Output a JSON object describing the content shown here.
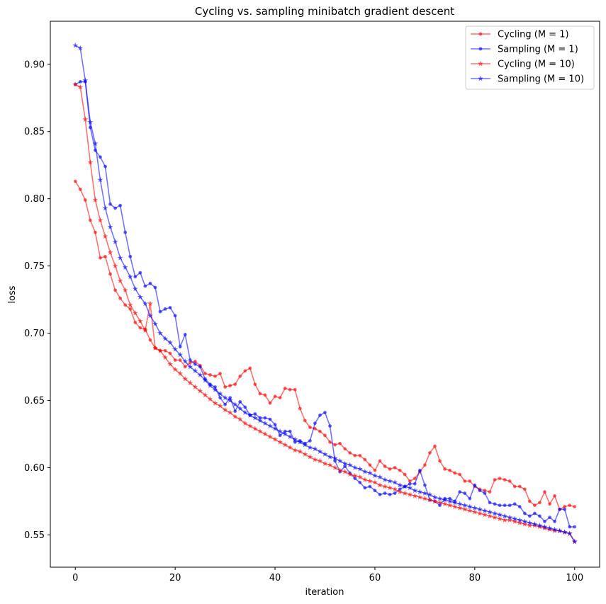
{
  "chart_data": {
    "type": "line",
    "title": "Cycling vs. sampling minibatch gradient descent",
    "xlabel": "iteration",
    "ylabel": "loss",
    "xlim": [
      -5,
      105
    ],
    "ylim": [
      0.526,
      0.932
    ],
    "xticks": [
      0,
      20,
      40,
      60,
      80,
      100
    ],
    "yticks": [
      0.55,
      0.6,
      0.65,
      0.7,
      0.75,
      0.8,
      0.85,
      0.9
    ],
    "ytick_labels": [
      "0.55",
      "0.60",
      "0.65",
      "0.70",
      "0.75",
      "0.80",
      "0.85",
      "0.90"
    ],
    "grid": false,
    "legend_position": "top-right",
    "x": [
      0,
      1,
      2,
      3,
      4,
      5,
      6,
      7,
      8,
      9,
      10,
      11,
      12,
      13,
      14,
      15,
      16,
      17,
      18,
      19,
      20,
      21,
      22,
      23,
      24,
      25,
      26,
      27,
      28,
      29,
      30,
      31,
      32,
      33,
      34,
      35,
      36,
      37,
      38,
      39,
      40,
      41,
      42,
      43,
      44,
      45,
      46,
      47,
      48,
      49,
      50,
      51,
      52,
      53,
      54,
      55,
      56,
      57,
      58,
      59,
      60,
      61,
      62,
      63,
      64,
      65,
      66,
      67,
      68,
      69,
      70,
      71,
      72,
      73,
      74,
      75,
      76,
      77,
      78,
      79,
      80,
      81,
      82,
      83,
      84,
      85,
      86,
      87,
      88,
      89,
      90,
      91,
      92,
      93,
      94,
      95,
      96,
      97,
      98,
      99,
      100
    ],
    "series": [
      {
        "name": "Cycling (M = 1)",
        "color": "#ff0000",
        "marker": "dot",
        "values": [
          0.813,
          0.807,
          0.799,
          0.784,
          0.775,
          0.756,
          0.757,
          0.744,
          0.732,
          0.726,
          0.721,
          0.718,
          0.708,
          0.704,
          0.703,
          0.695,
          0.689,
          0.687,
          0.687,
          0.685,
          0.68,
          0.68,
          0.675,
          0.678,
          0.679,
          0.676,
          0.67,
          0.669,
          0.668,
          0.67,
          0.66,
          0.661,
          0.662,
          0.668,
          0.672,
          0.674,
          0.662,
          0.655,
          0.654,
          0.648,
          0.653,
          0.652,
          0.659,
          0.658,
          0.658,
          0.644,
          0.635,
          0.63,
          0.629,
          0.627,
          0.624,
          0.619,
          0.617,
          0.618,
          0.614,
          0.611,
          0.609,
          0.609,
          0.606,
          0.602,
          0.598,
          0.605,
          0.601,
          0.599,
          0.6,
          0.598,
          0.595,
          0.59,
          0.592,
          0.597,
          0.602,
          0.611,
          0.616,
          0.605,
          0.599,
          0.598,
          0.596,
          0.595,
          0.59,
          0.59,
          0.586,
          0.584,
          0.583,
          0.582,
          0.591,
          0.592,
          0.591,
          0.59,
          0.586,
          0.586,
          0.584,
          0.575,
          0.572,
          0.574,
          0.582,
          0.573,
          0.579,
          0.569,
          0.571,
          0.572,
          0.571
        ]
      },
      {
        "name": "Sampling (M = 1)",
        "color": "#0000ff",
        "marker": "dot",
        "values": [
          0.885,
          0.887,
          0.887,
          0.853,
          0.836,
          0.831,
          0.824,
          0.796,
          0.793,
          0.795,
          0.775,
          0.757,
          0.742,
          0.745,
          0.735,
          0.737,
          0.734,
          0.716,
          0.718,
          0.719,
          0.713,
          0.69,
          0.699,
          0.68,
          0.677,
          0.675,
          0.666,
          0.662,
          0.66,
          0.652,
          0.647,
          0.652,
          0.642,
          0.649,
          0.645,
          0.639,
          0.64,
          0.637,
          0.637,
          0.636,
          0.632,
          0.624,
          0.627,
          0.627,
          0.619,
          0.62,
          0.618,
          0.62,
          0.633,
          0.639,
          0.641,
          0.631,
          0.605,
          0.597,
          0.601,
          0.596,
          0.592,
          0.589,
          0.585,
          0.586,
          0.583,
          0.58,
          0.581,
          0.58,
          0.581,
          0.584,
          0.586,
          0.588,
          0.588,
          0.598,
          0.587,
          0.576,
          0.575,
          0.572,
          0.577,
          0.577,
          0.575,
          0.582,
          0.581,
          0.577,
          0.587,
          0.583,
          0.581,
          0.574,
          0.573,
          0.572,
          0.572,
          0.572,
          0.573,
          0.571,
          0.566,
          0.564,
          0.566,
          0.564,
          0.56,
          0.563,
          0.56,
          0.569,
          0.569,
          0.556,
          0.556
        ]
      },
      {
        "name": "Cycling (M = 10)",
        "color": "#ff0000",
        "marker": "star",
        "values": [
          0.885,
          0.883,
          0.859,
          0.827,
          0.799,
          0.784,
          0.772,
          0.76,
          0.75,
          0.739,
          0.732,
          0.721,
          0.715,
          0.709,
          0.702,
          0.722,
          0.689,
          0.687,
          0.682,
          0.677,
          0.673,
          0.67,
          0.666,
          0.663,
          0.66,
          0.657,
          0.654,
          0.651,
          0.648,
          0.646,
          0.643,
          0.641,
          0.638,
          0.636,
          0.633,
          0.631,
          0.629,
          0.627,
          0.625,
          0.623,
          0.621,
          0.619,
          0.617,
          0.615,
          0.613,
          0.612,
          0.61,
          0.608,
          0.606,
          0.605,
          0.603,
          0.602,
          0.6,
          0.598,
          0.597,
          0.595,
          0.594,
          0.593,
          0.591,
          0.59,
          0.589,
          0.587,
          0.586,
          0.585,
          0.584,
          0.582,
          0.581,
          0.58,
          0.579,
          0.578,
          0.577,
          0.576,
          0.575,
          0.574,
          0.573,
          0.572,
          0.571,
          0.57,
          0.569,
          0.568,
          0.567,
          0.566,
          0.565,
          0.564,
          0.563,
          0.562,
          0.561,
          0.561,
          0.56,
          0.559,
          0.558,
          0.557,
          0.557,
          0.556,
          0.555,
          0.554,
          0.553,
          0.553,
          0.552,
          0.551,
          0.545
        ]
      },
      {
        "name": "Sampling (M = 10)",
        "color": "#0000ff",
        "marker": "star",
        "values": [
          0.914,
          0.912,
          0.888,
          0.857,
          0.841,
          0.814,
          0.793,
          0.779,
          0.768,
          0.756,
          0.749,
          0.742,
          0.733,
          0.727,
          0.722,
          0.713,
          0.707,
          0.7,
          0.696,
          0.693,
          0.688,
          0.684,
          0.679,
          0.675,
          0.672,
          0.669,
          0.665,
          0.661,
          0.658,
          0.655,
          0.652,
          0.65,
          0.647,
          0.644,
          0.641,
          0.639,
          0.637,
          0.635,
          0.633,
          0.631,
          0.629,
          0.627,
          0.625,
          0.623,
          0.621,
          0.619,
          0.617,
          0.615,
          0.614,
          0.612,
          0.61,
          0.608,
          0.607,
          0.605,
          0.603,
          0.602,
          0.6,
          0.599,
          0.597,
          0.596,
          0.594,
          0.593,
          0.591,
          0.59,
          0.589,
          0.587,
          0.586,
          0.585,
          0.583,
          0.582,
          0.581,
          0.58,
          0.578,
          0.577,
          0.576,
          0.575,
          0.574,
          0.573,
          0.572,
          0.571,
          0.57,
          0.569,
          0.568,
          0.567,
          0.566,
          0.565,
          0.564,
          0.563,
          0.562,
          0.561,
          0.56,
          0.559,
          0.558,
          0.557,
          0.556,
          0.555,
          0.554,
          0.553,
          0.552,
          0.551,
          0.545
        ]
      }
    ]
  }
}
